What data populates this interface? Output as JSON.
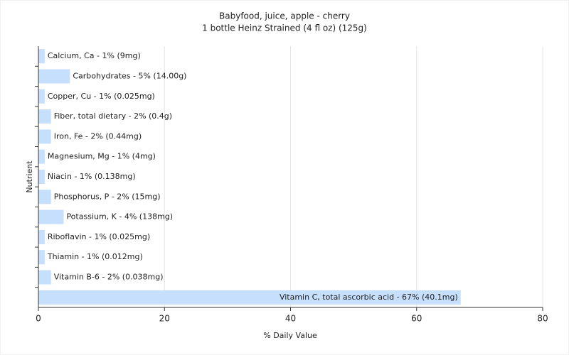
{
  "chart_data": {
    "type": "bar",
    "orientation": "horizontal",
    "title": "Babyfood, juice, apple - cherry",
    "subtitle": "1 bottle Heinz Strained (4 fl oz) (125g)",
    "x_label": "% Daily Value",
    "y_label": "Nutrient",
    "values": [
      1,
      5,
      1,
      2,
      2,
      1,
      1,
      2,
      4,
      1,
      1,
      2,
      67
    ],
    "value_labels": [
      "Calcium, Ca - 1% (9mg)",
      "Carbohydrates - 5% (14.00g)",
      "Copper, Cu - 1% (0.025mg)",
      "Fiber, total dietary - 2% (0.4g)",
      "Iron, Fe - 2% (0.44mg)",
      "Magnesium, Mg - 1% (4mg)",
      "Niacin - 1% (0.138mg)",
      "Phosphorus, P - 2% (15mg)",
      "Potassium, K - 4% (138mg)",
      "Riboflavin - 1% (0.025mg)",
      "Thiamin - 1% (0.012mg)",
      "Vitamin B-6 - 2% (0.038mg)",
      "Vitamin C, total ascorbic acid - 67% (40.1mg)"
    ],
    "color": "#c6dffc",
    "xlim": [
      0,
      80
    ],
    "xticks": [
      0,
      20,
      40,
      60,
      80
    ],
    "grid": true
  }
}
